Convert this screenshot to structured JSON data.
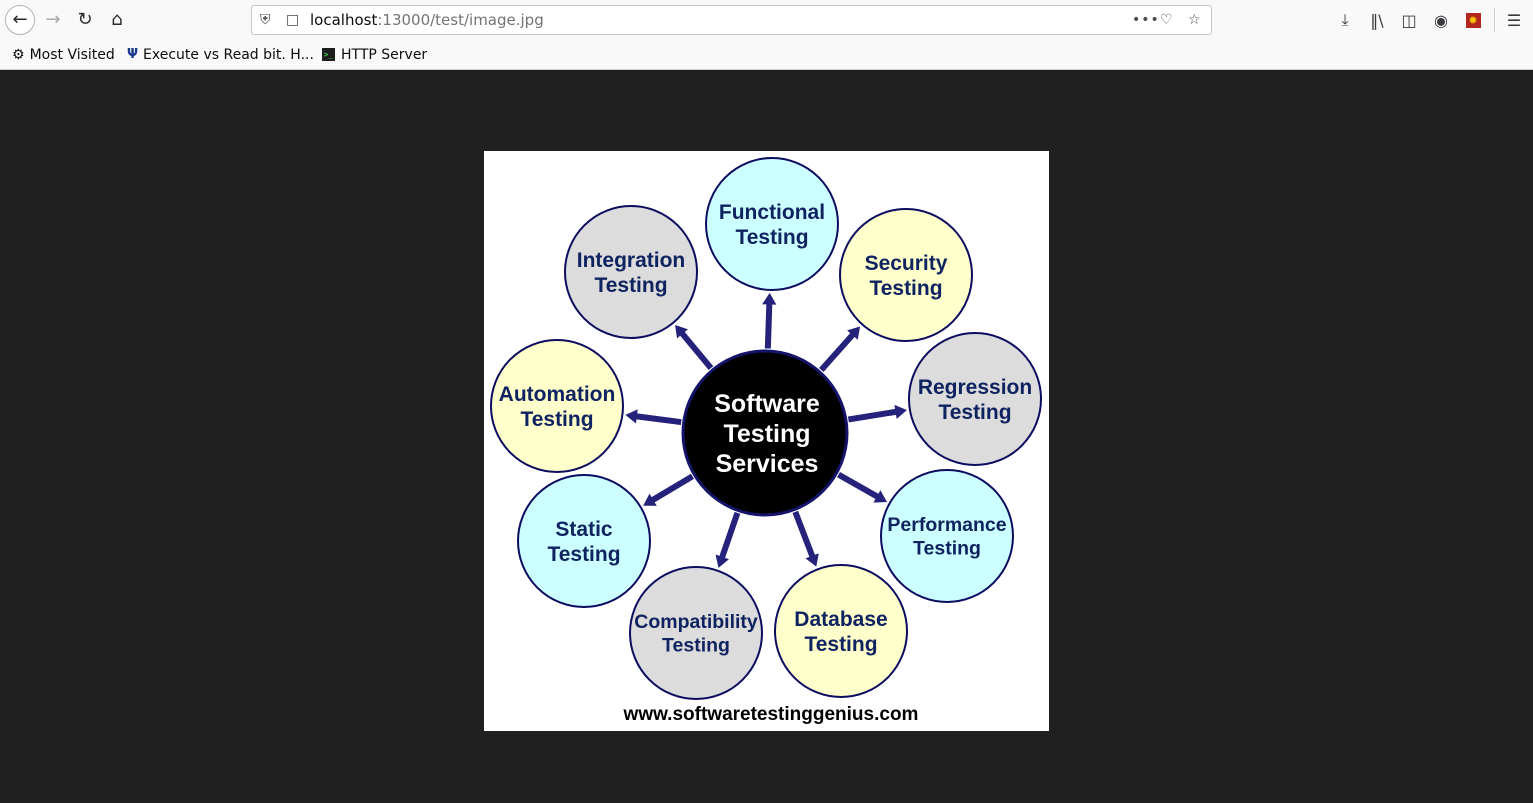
{
  "browser": {
    "url_host": "localhost",
    "url_path": ":13000/test/image.jpg",
    "bookmarks": [
      {
        "label": "Most Visited",
        "icon": "gear-icon"
      },
      {
        "label": "Execute vs Read bit. H...",
        "icon": "site-favicon"
      },
      {
        "label": "HTTP Server",
        "icon": "terminal-icon"
      }
    ],
    "icons": {
      "back": "back-arrow-icon",
      "forward": "forward-arrow-icon",
      "reload": "reload-icon",
      "home": "home-icon",
      "page_actions": "more-dots-icon",
      "pocket": "pocket-icon",
      "bookmark_star": "star-icon",
      "downloads": "download-icon",
      "library": "library-icon",
      "sidebar": "sidebar-icon",
      "account": "account-icon",
      "extension": "extension-icon",
      "menu": "hamburger-menu-icon"
    }
  },
  "diagram": {
    "center": {
      "lines": [
        "Software",
        "Testing",
        "Services"
      ],
      "color": "#000000"
    },
    "nodes": [
      {
        "lines": [
          "Functional",
          "Testing"
        ],
        "fill": "#ccffff"
      },
      {
        "lines": [
          "Security",
          "Testing"
        ],
        "fill": "#ffffcc"
      },
      {
        "lines": [
          "Regression",
          "Testing"
        ],
        "fill": "#dcdcdc"
      },
      {
        "lines": [
          "Performance",
          "Testing"
        ],
        "fill": "#ccffff"
      },
      {
        "lines": [
          "Database",
          "Testing"
        ],
        "fill": "#ffffcc"
      },
      {
        "lines": [
          "Compatibility",
          "Testing"
        ],
        "fill": "#dcdcdc"
      },
      {
        "lines": [
          "Static",
          "Testing"
        ],
        "fill": "#ccffff"
      },
      {
        "lines": [
          "Automation",
          "Testing"
        ],
        "fill": "#ffffcc"
      },
      {
        "lines": [
          "Integration",
          "Testing"
        ],
        "fill": "#dcdcdc"
      }
    ],
    "footer": "www.softwaretestinggenius.com",
    "text_color": "#0f2360",
    "arrow_color": "#24227a",
    "outline_color": "#0c0c60"
  }
}
